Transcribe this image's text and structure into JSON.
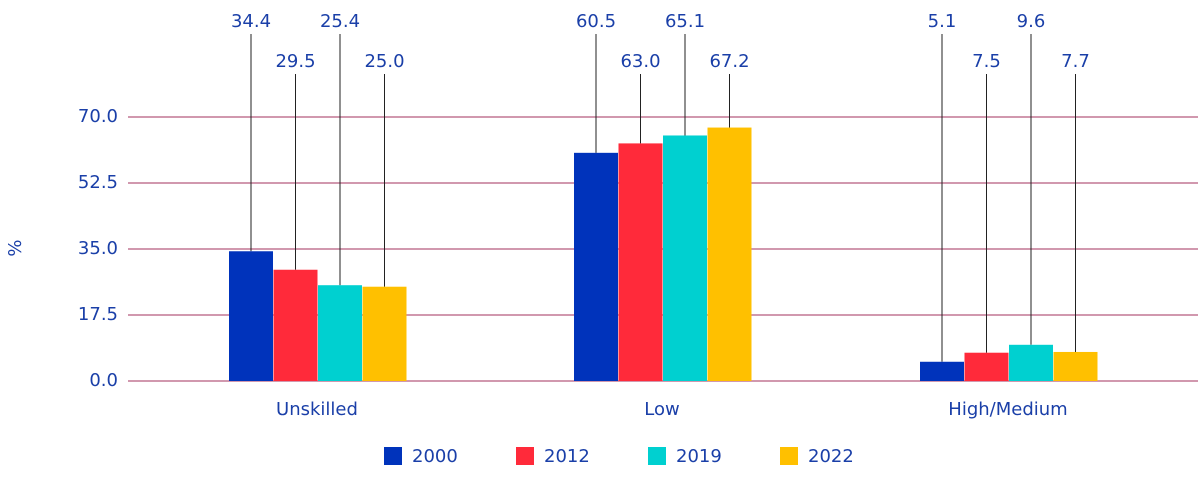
{
  "chart_data": {
    "type": "bar",
    "ylabel": "%",
    "categories": [
      "Unskilled",
      "Low",
      "High/Medium"
    ],
    "series": [
      {
        "name": "2000",
        "color": "#0033bb",
        "values": [
          34.4,
          60.5,
          5.1
        ],
        "value_labels": [
          "34.4",
          "60.5",
          "5.1"
        ]
      },
      {
        "name": "2012",
        "color": "#ff2a3a",
        "values": [
          29.5,
          63.0,
          7.5
        ],
        "value_labels": [
          "29.5",
          "63.0",
          "7.5"
        ]
      },
      {
        "name": "2019",
        "color": "#00d0d0",
        "values": [
          25.4,
          65.1,
          9.6
        ],
        "value_labels": [
          "25.4",
          "65.1",
          "9.6"
        ]
      },
      {
        "name": "2022",
        "color": "#ffc000",
        "values": [
          25.0,
          67.2,
          7.7
        ],
        "value_labels": [
          "25.0",
          "67.2",
          "7.7"
        ]
      }
    ],
    "ylim": [
      0,
      70
    ],
    "yticks": [
      {
        "value": 0,
        "label": "0.0"
      },
      {
        "value": 17.5,
        "label": "17.5"
      },
      {
        "value": 35,
        "label": "35.0"
      },
      {
        "value": 52.5,
        "label": "52.5"
      },
      {
        "value": 70,
        "label": "70.0"
      }
    ],
    "grid": true,
    "legend": "bottom"
  }
}
